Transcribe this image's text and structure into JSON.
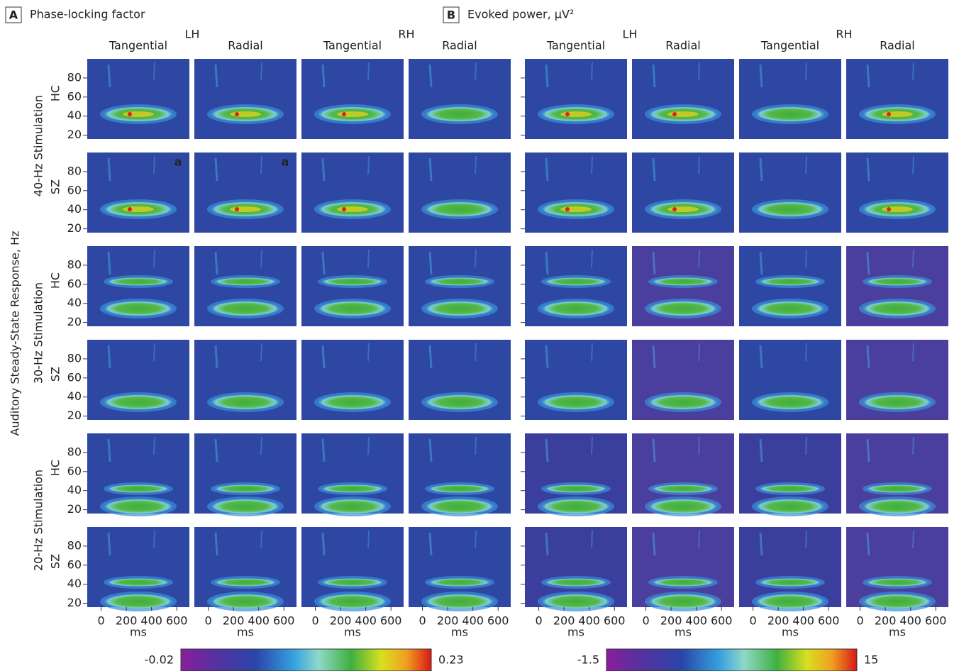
{
  "panels": [
    {
      "label": "A",
      "title": "Phase-locking factor",
      "hemispheres": [
        "LH",
        "RH"
      ],
      "orientations": [
        "Tangential",
        "Radial"
      ],
      "colorbar": {
        "min": -0.02,
        "max": 0.23
      }
    },
    {
      "label": "B",
      "title": "Evoked power, μV²",
      "hemispheres": [
        "LH",
        "RH"
      ],
      "orientations": [
        "Tangential",
        "Radial"
      ],
      "colorbar": {
        "min": -1.5,
        "max": 15
      }
    }
  ],
  "y_axis_title": "Auditory Steady-State Response, Hz",
  "stimulations": [
    "40-Hz Stimulation",
    "30-Hz Stimulation",
    "20-Hz Stimulation"
  ],
  "groups": [
    "HC",
    "SZ"
  ],
  "ylim": [
    16,
    100
  ],
  "yticks": [
    20,
    40,
    60,
    80
  ],
  "xlim": [
    -110,
    700
  ],
  "xticks": [
    0,
    200,
    400,
    600
  ],
  "x_label": "ms",
  "annotation": "a"
}
